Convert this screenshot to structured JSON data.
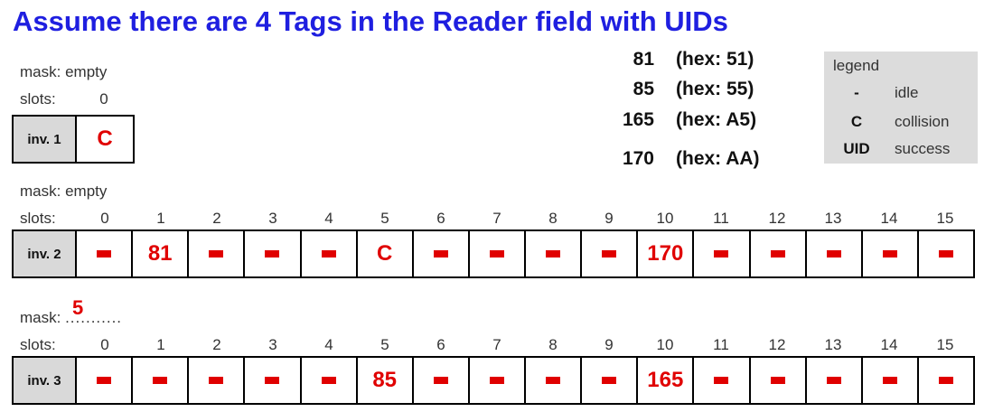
{
  "title": "Assume there are 4 Tags in the Reader field with UIDs",
  "uids": [
    {
      "dec": "81",
      "hex": "(hex: 51)"
    },
    {
      "dec": "85",
      "hex": "(hex: 55)"
    },
    {
      "dec": "165",
      "hex": "(hex: A5)"
    },
    {
      "dec": "170",
      "hex": "(hex: AA)"
    }
  ],
  "legend": {
    "title": "legend",
    "items": [
      {
        "symbol": "-",
        "text": "idle"
      },
      {
        "symbol": "C",
        "text": "collision"
      },
      {
        "symbol": "UID",
        "text": "success"
      }
    ]
  },
  "inv1": {
    "mask_label": "mask:",
    "mask_value": "empty",
    "slots_label": "slots:",
    "slot_numbers": [
      "0"
    ],
    "row_label": "inv. 1",
    "slots": [
      "C"
    ]
  },
  "inv2": {
    "mask_label": "mask:",
    "mask_value": "empty",
    "slots_label": "slots:",
    "slot_numbers": [
      "0",
      "1",
      "2",
      "3",
      "4",
      "5",
      "6",
      "7",
      "8",
      "9",
      "10",
      "11",
      "12",
      "13",
      "14",
      "15"
    ],
    "row_label": "inv. 2",
    "slots": [
      "-",
      "81",
      "-",
      "-",
      "-",
      "C",
      "-",
      "-",
      "-",
      "-",
      "170",
      "-",
      "-",
      "-",
      "-",
      "-"
    ]
  },
  "inv3": {
    "mask_label": "mask:",
    "mask_value": "5",
    "mask_dots": "...........",
    "slots_label": "slots:",
    "slot_numbers": [
      "0",
      "1",
      "2",
      "3",
      "4",
      "5",
      "6",
      "7",
      "8",
      "9",
      "10",
      "11",
      "12",
      "13",
      "14",
      "15"
    ],
    "row_label": "inv. 3",
    "slots": [
      "-",
      "-",
      "-",
      "-",
      "-",
      "85",
      "-",
      "-",
      "-",
      "-",
      "165",
      "-",
      "-",
      "-",
      "-",
      "-"
    ]
  },
  "colors": {
    "title": "#1f1fe0",
    "slot_text": "#e00000",
    "label_bg": "#d9d9d9",
    "legend_bg": "#dcdcdc"
  }
}
